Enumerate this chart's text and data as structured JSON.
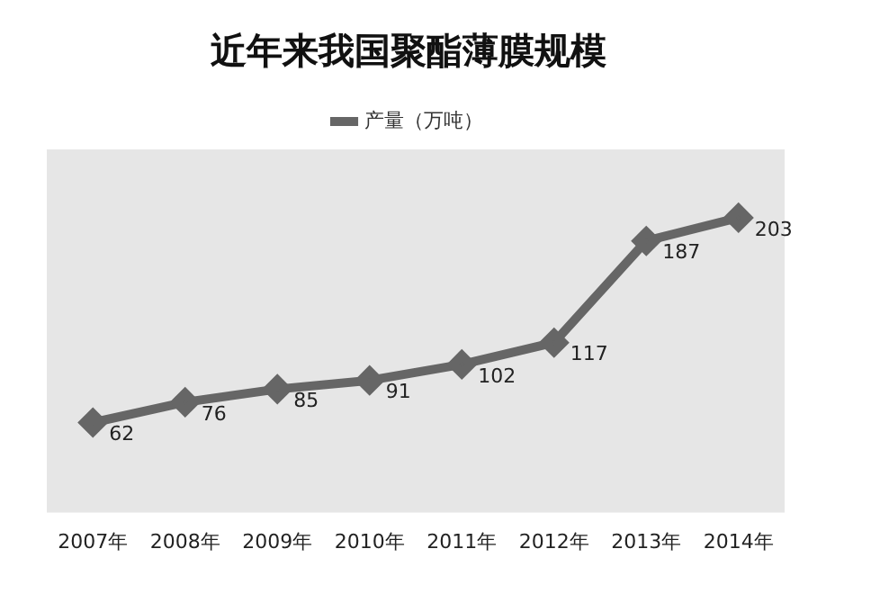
{
  "chart_data": {
    "type": "line",
    "title": "近年来我国聚酯薄膜规模",
    "categories": [
      "2007年",
      "2008年",
      "2009年",
      "2010年",
      "2011年",
      "2012年",
      "2013年",
      "2014年"
    ],
    "series": [
      {
        "name": "产量（万吨）",
        "color": "#666666",
        "values": [
          62,
          76,
          85,
          91,
          102,
          117,
          187,
          203
        ]
      }
    ],
    "data_labels": true,
    "legend": "top",
    "marker": "diamond",
    "line_style": "solid",
    "grid": false,
    "tick_labels": "x"
  }
}
